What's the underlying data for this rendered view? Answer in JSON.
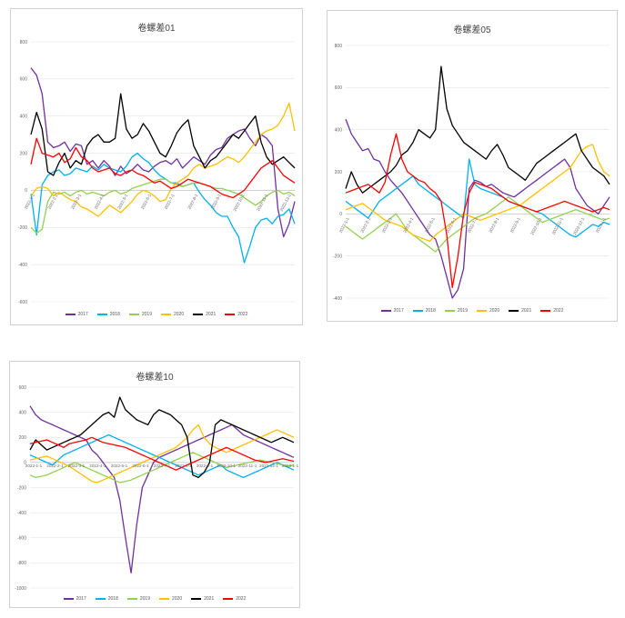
{
  "chart_data": [
    {
      "type": "line",
      "title": "卷螺差01",
      "ylim": [
        -600,
        800
      ],
      "yticks": [
        800,
        600,
        400,
        200,
        0,
        -200,
        -400,
        -600
      ],
      "xtick_labels": [
        "2022-1-1",
        "2022-2-1",
        "2022-3-1",
        "2022-4-1",
        "2022-5-1",
        "2022-6-1",
        "2022-7-1",
        "2022-8-1",
        "2022-9-1",
        "2022-10-1",
        "2022-11-1",
        "2022-12-1"
      ],
      "legend_position": "bottom",
      "grid": true,
      "series": [
        {
          "name": "2017",
          "color": "#7030a0",
          "values": [
            660,
            620,
            520,
            260,
            230,
            240,
            260,
            210,
            250,
            240,
            140,
            160,
            120,
            160,
            130,
            80,
            130,
            90,
            110,
            140,
            110,
            100,
            130,
            150,
            160,
            140,
            170,
            120,
            150,
            180,
            160,
            140,
            190,
            220,
            230,
            280,
            300,
            320,
            330,
            280,
            240,
            300,
            280,
            240,
            -100,
            -250,
            -180,
            -60
          ]
        },
        {
          "name": "2018",
          "color": "#00b0f0",
          "values": [
            -20,
            -240,
            30,
            80,
            100,
            110,
            80,
            90,
            120,
            110,
            100,
            130,
            110,
            140,
            120,
            110,
            100,
            130,
            180,
            200,
            170,
            150,
            110,
            80,
            60,
            40,
            40,
            20,
            30,
            40,
            -10,
            -50,
            -80,
            -120,
            -140,
            -140,
            -200,
            -250,
            -390,
            -300,
            -200,
            -160,
            -150,
            -180,
            -140,
            -130,
            -100,
            -180
          ]
        },
        {
          "name": "2019",
          "color": "#92d050",
          "values": [
            -200,
            -230,
            -210,
            -60,
            -10,
            -20,
            -10,
            -30,
            -10,
            0,
            -20,
            -10,
            -20,
            -30,
            -10,
            0,
            -20,
            -10,
            10,
            20,
            30,
            40,
            50,
            60,
            60,
            40,
            30,
            20,
            30,
            40,
            40,
            30,
            20,
            10,
            10,
            0,
            -10,
            -20,
            -40,
            -60,
            -80,
            -60,
            -30,
            -10,
            0,
            -20,
            -10,
            -30
          ]
        },
        {
          "name": "2020",
          "color": "#ffc000",
          "values": [
            -30,
            10,
            20,
            10,
            -30,
            -10,
            -30,
            -50,
            -60,
            -90,
            -100,
            -120,
            -140,
            -110,
            -80,
            -100,
            -120,
            -90,
            -60,
            -20,
            0,
            -10,
            -30,
            -60,
            -50,
            10,
            40,
            60,
            80,
            120,
            140,
            120,
            130,
            140,
            160,
            180,
            170,
            150,
            180,
            220,
            260,
            300,
            320,
            330,
            350,
            400,
            470,
            320
          ]
        },
        {
          "name": "2021",
          "color": "#000000",
          "values": [
            300,
            420,
            330,
            100,
            80,
            150,
            200,
            120,
            160,
            140,
            240,
            280,
            300,
            260,
            260,
            280,
            520,
            330,
            280,
            300,
            360,
            320,
            260,
            200,
            180,
            240,
            310,
            350,
            380,
            240,
            180,
            120,
            160,
            180,
            220,
            260,
            300,
            280,
            320,
            360,
            400,
            260,
            180,
            140,
            160,
            180,
            150,
            120
          ]
        },
        {
          "name": "2022",
          "color": "#ff0000",
          "values": [
            140,
            280,
            200,
            190,
            180,
            200,
            150,
            170,
            230,
            180,
            160,
            120,
            100,
            110,
            120,
            90,
            80,
            100,
            110,
            90,
            80,
            60,
            40,
            50,
            30,
            10,
            20,
            40,
            60,
            50,
            40,
            30,
            20,
            0,
            -20,
            -30,
            -40,
            -20,
            0,
            40,
            80,
            120,
            140,
            160,
            120,
            80,
            60,
            40
          ]
        }
      ]
    },
    {
      "type": "line",
      "title": "卷螺差05",
      "ylim": [
        -400,
        800
      ],
      "yticks": [
        800,
        600,
        400,
        200,
        0,
        -200,
        -400
      ],
      "xtick_labels": [
        "2022-1-1",
        "2022-2-1",
        "2022-3-1",
        "2022-4-1",
        "2022-5-1",
        "2022-6-1",
        "2022-7-1",
        "2022-8-1",
        "2022-9-1",
        "2022-10-1",
        "2022-11-1",
        "2022-12-1",
        "2023-1-1"
      ],
      "legend_position": "bottom",
      "grid": true,
      "series": [
        {
          "name": "2017",
          "color": "#7030a0",
          "values": [
            450,
            380,
            340,
            300,
            310,
            260,
            250,
            200,
            160,
            130,
            100,
            60,
            20,
            -20,
            -60,
            -100,
            -120,
            -200,
            -300,
            -400,
            -360,
            -260,
            120,
            160,
            150,
            130,
            140,
            120,
            100,
            90,
            80,
            100,
            120,
            140,
            160,
            180,
            200,
            220,
            240,
            260,
            220,
            120,
            80,
            40,
            20,
            0,
            40,
            80
          ]
        },
        {
          "name": "2018",
          "color": "#00b0f0",
          "values": [
            60,
            40,
            20,
            0,
            -20,
            20,
            60,
            80,
            100,
            120,
            140,
            160,
            180,
            140,
            120,
            100,
            80,
            60,
            40,
            20,
            0,
            -20,
            260,
            140,
            120,
            110,
            100,
            90,
            80,
            60,
            50,
            40,
            30,
            20,
            10,
            0,
            -20,
            -40,
            -60,
            -80,
            -100,
            -110,
            -90,
            -70,
            -50,
            -60,
            -40,
            -50
          ]
        },
        {
          "name": "2019",
          "color": "#92d050",
          "values": [
            -60,
            -80,
            -100,
            -120,
            -100,
            -80,
            -60,
            -40,
            -20,
            0,
            -40,
            -80,
            -100,
            -120,
            -140,
            -160,
            -180,
            -150,
            -120,
            -100,
            -80,
            -60,
            -40,
            -20,
            -10,
            0,
            20,
            40,
            60,
            80,
            60,
            40,
            20,
            0,
            -20,
            -40,
            -30,
            -20,
            -10,
            0,
            10,
            20,
            10,
            0,
            -10,
            -20,
            -30,
            -20
          ]
        },
        {
          "name": "2020",
          "color": "#ffc000",
          "values": [
            20,
            30,
            40,
            50,
            30,
            10,
            -10,
            -30,
            -40,
            -50,
            -60,
            -80,
            -100,
            -110,
            -120,
            -130,
            -100,
            -80,
            -60,
            -40,
            -20,
            0,
            -10,
            -20,
            -30,
            -20,
            -10,
            0,
            10,
            20,
            30,
            40,
            60,
            80,
            100,
            120,
            140,
            160,
            180,
            200,
            220,
            260,
            300,
            320,
            330,
            250,
            200,
            180
          ]
        },
        {
          "name": "2021",
          "color": "#000000",
          "values": [
            120,
            200,
            140,
            100,
            120,
            140,
            160,
            180,
            200,
            230,
            280,
            300,
            340,
            400,
            380,
            360,
            400,
            700,
            500,
            420,
            380,
            340,
            320,
            300,
            280,
            260,
            300,
            330,
            280,
            220,
            200,
            180,
            160,
            200,
            240,
            260,
            280,
            300,
            320,
            340,
            360,
            380,
            300,
            260,
            220,
            200,
            180,
            140
          ]
        },
        {
          "name": "2022",
          "color": "#ff0000",
          "values": [
            100,
            110,
            120,
            130,
            140,
            120,
            100,
            150,
            280,
            380,
            260,
            200,
            180,
            160,
            150,
            120,
            100,
            60,
            -100,
            -350,
            -200,
            0,
            100,
            150,
            140,
            130,
            120,
            100,
            80,
            60,
            50,
            40,
            30,
            20,
            10,
            20,
            30,
            40,
            50,
            60,
            50,
            40,
            30,
            20,
            10,
            20,
            30,
            20
          ]
        }
      ]
    },
    {
      "type": "line",
      "title": "卷螺差10",
      "ylim": [
        -1000,
        600
      ],
      "yticks": [
        600,
        400,
        200,
        0,
        -200,
        -400,
        -600,
        -800,
        -1000
      ],
      "xtick_labels": [
        "2022-1-1",
        "2022-2-1",
        "2022-3-1",
        "2022-4-1",
        "2022-5-1",
        "2022-6-1",
        "2022-7-1",
        "2022-8-1",
        "2022-9-1",
        "2022-10-1",
        "2022-11-1",
        "2022-12-1",
        "2023-1-1"
      ],
      "legend_position": "bottom",
      "grid": true,
      "series": [
        {
          "name": "2017",
          "color": "#7030a0",
          "values": [
            450,
            380,
            340,
            320,
            300,
            280,
            260,
            240,
            220,
            200,
            180,
            100,
            60,
            0,
            -60,
            -120,
            -300,
            -600,
            -880,
            -500,
            -200,
            -100,
            0,
            40,
            60,
            80,
            100,
            120,
            140,
            160,
            180,
            200,
            220,
            240,
            260,
            280,
            300,
            260,
            220,
            200,
            180,
            160,
            140,
            120,
            100,
            80,
            60,
            40
          ]
        },
        {
          "name": "2018",
          "color": "#00b0f0",
          "values": [
            60,
            40,
            20,
            0,
            -20,
            20,
            60,
            80,
            100,
            120,
            140,
            160,
            180,
            200,
            220,
            200,
            180,
            160,
            140,
            120,
            100,
            80,
            60,
            40,
            20,
            0,
            -20,
            -40,
            -60,
            -80,
            -100,
            -80,
            -60,
            -40,
            -20,
            -60,
            -80,
            -100,
            -120,
            -100,
            -80,
            -60,
            -40,
            -20,
            0,
            -20,
            -40,
            -60
          ]
        },
        {
          "name": "2019",
          "color": "#92d050",
          "values": [
            -100,
            -120,
            -110,
            -100,
            -80,
            -60,
            -40,
            -20,
            0,
            -20,
            -40,
            -60,
            -80,
            -100,
            -120,
            -140,
            -160,
            -150,
            -140,
            -120,
            -100,
            -80,
            -60,
            -40,
            -20,
            0,
            20,
            40,
            60,
            80,
            60,
            40,
            20,
            0,
            -20,
            -40,
            -30,
            -20,
            -10,
            0,
            10,
            20,
            10,
            0,
            -10,
            -20,
            -30,
            -20
          ]
        },
        {
          "name": "2020",
          "color": "#ffc000",
          "values": [
            20,
            30,
            40,
            50,
            30,
            10,
            -10,
            -30,
            -60,
            -90,
            -120,
            -150,
            -160,
            -140,
            -120,
            -100,
            -80,
            -60,
            -40,
            -20,
            0,
            20,
            40,
            60,
            80,
            100,
            120,
            160,
            200,
            260,
            300,
            200,
            150,
            120,
            100,
            80,
            100,
            120,
            140,
            160,
            180,
            200,
            220,
            240,
            260,
            240,
            220,
            200
          ]
        },
        {
          "name": "2021",
          "color": "#000000",
          "values": [
            100,
            180,
            140,
            100,
            120,
            140,
            160,
            180,
            200,
            220,
            260,
            300,
            340,
            380,
            400,
            360,
            520,
            420,
            380,
            340,
            320,
            300,
            380,
            420,
            400,
            380,
            340,
            300,
            200,
            -100,
            -120,
            -80,
            0,
            300,
            340,
            320,
            300,
            280,
            260,
            240,
            220,
            200,
            180,
            160,
            180,
            200,
            180,
            160
          ]
        },
        {
          "name": "2022",
          "color": "#ff0000",
          "values": [
            150,
            160,
            170,
            180,
            160,
            140,
            120,
            150,
            160,
            170,
            180,
            200,
            180,
            160,
            150,
            140,
            130,
            120,
            100,
            80,
            60,
            40,
            20,
            0,
            -20,
            -40,
            -60,
            -40,
            -20,
            0,
            20,
            40,
            60,
            80,
            100,
            120,
            100,
            80,
            60,
            40,
            20,
            10,
            0,
            10,
            20,
            30,
            20,
            10
          ]
        }
      ]
    }
  ]
}
